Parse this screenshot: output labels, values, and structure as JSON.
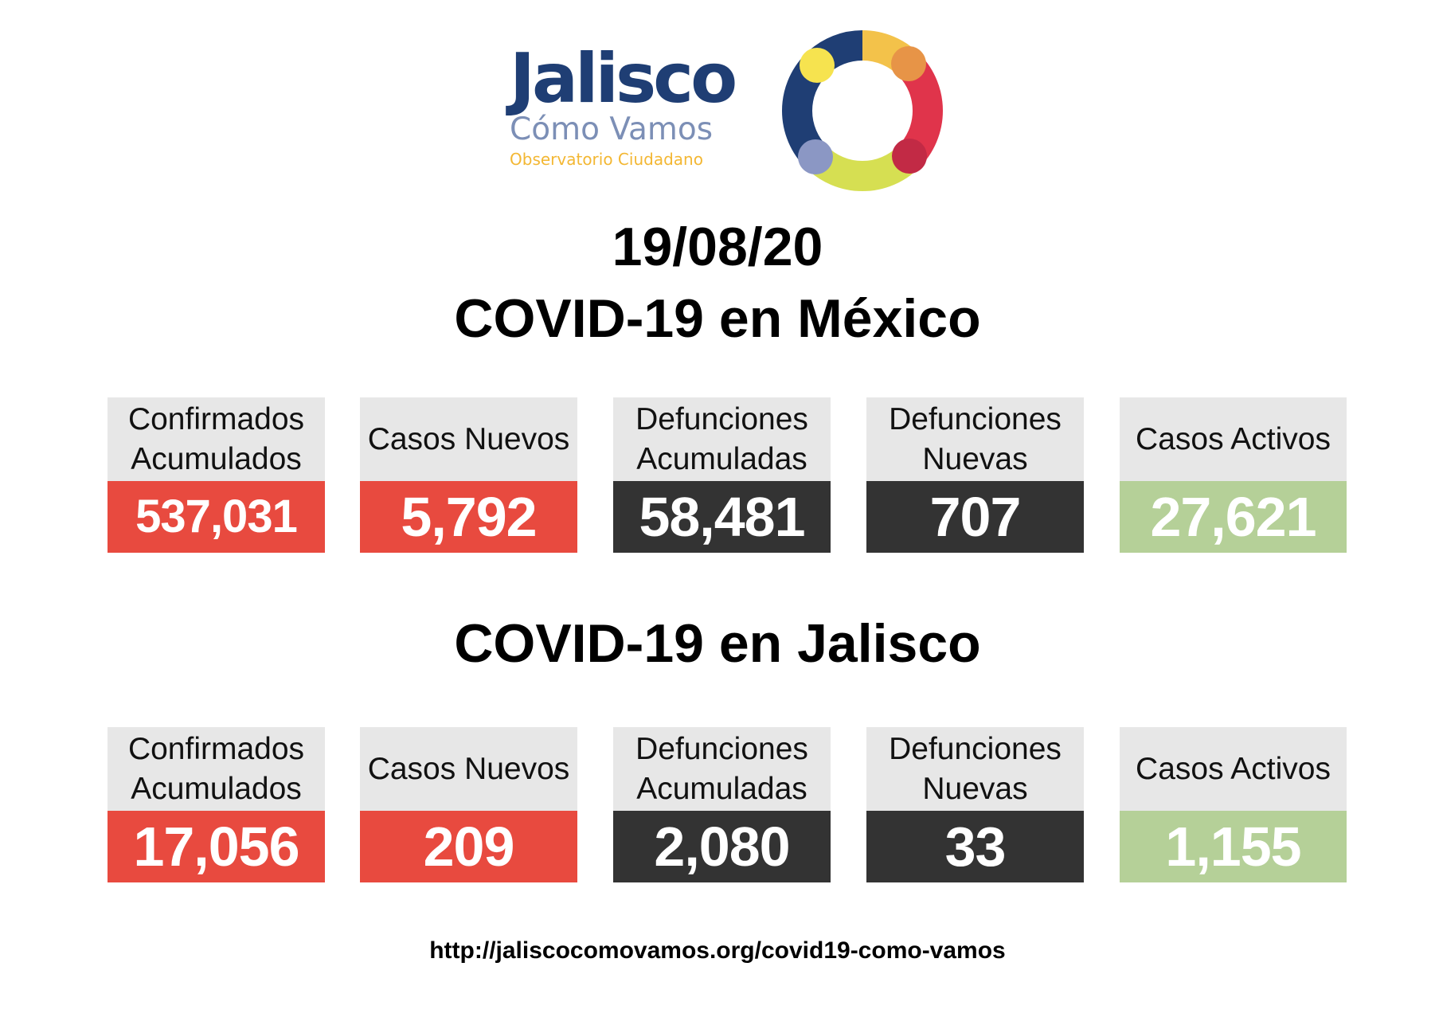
{
  "logo": {
    "word": "Jalisco",
    "sub1": "Cómo Vamos",
    "sub2": "Observatorio Ciudadano",
    "ring_colors": [
      "#1f3e74",
      "#f3c24a",
      "#e0344b",
      "#d6df52",
      "#8b97c4",
      "#f6e34f",
      "#e79447",
      "#c22a45"
    ]
  },
  "date": "19/08/20",
  "mexico": {
    "title": "COVID-19 en México",
    "cards": [
      {
        "label": "Confirmados\nAcumulados",
        "value": "537,031"
      },
      {
        "label": "Casos Nuevos",
        "value": "5,792"
      },
      {
        "label": "Defunciones\nAcumuladas",
        "value": "58,481"
      },
      {
        "label": "Defunciones\nNuevas",
        "value": "707"
      },
      {
        "label": "Casos Activos",
        "value": "27,621"
      }
    ]
  },
  "jalisco": {
    "title": "COVID-19 en Jalisco",
    "cards": [
      {
        "label": "Confirmados\nAcumulados",
        "value": "17,056"
      },
      {
        "label": "Casos Nuevos",
        "value": "209"
      },
      {
        "label": "Defunciones\nAcumuladas",
        "value": "2,080"
      },
      {
        "label": "Defunciones\nNuevas",
        "value": "33"
      },
      {
        "label": "Casos Activos",
        "value": "1,155"
      }
    ]
  },
  "colors": {
    "red": "#e84a3f",
    "dark": "#333333",
    "green": "#b5d098",
    "label_bg": "#e7e7e7"
  },
  "footer_url": "http://jaliscocomovamos.org/covid19-como-vamos"
}
